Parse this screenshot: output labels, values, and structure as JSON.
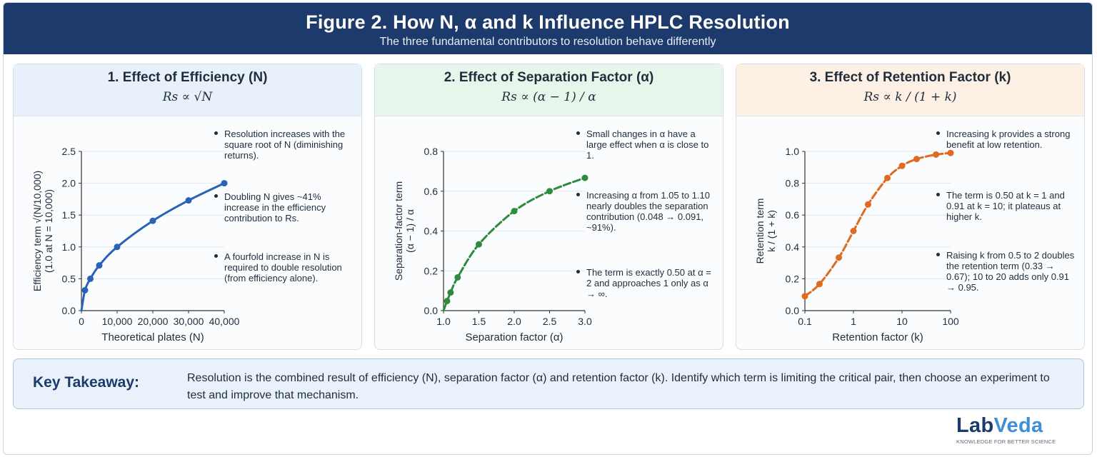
{
  "header": {
    "title": "Figure 2. How N, α and k Influence HPLC Resolution",
    "subtitle": "The three fundamental contributors to resolution behave differently"
  },
  "panels": [
    {
      "title": "1.  Effect of Efficiency (N)",
      "formula": "Rs ∝ √N",
      "bullets": [
        "Resolution increases with the square root of N (diminishing returns).",
        "Doubling N gives ~41% increase in the efficiency contribution to Rs.",
        "A fourfold increase in N is required to double resolution (from efficiency alone)."
      ]
    },
    {
      "title": "2.  Effect of Separation Factor (α)",
      "formula": "Rs ∝ (α − 1) / α",
      "bullets": [
        "Small changes in α have a large effect when α is close to 1.",
        "Increasing α from 1.05 to 1.10 nearly doubles the separation contribution (0.048 → 0.091, ~91%).",
        "The term is exactly 0.50 at α = 2 and approaches 1 only as α → ∞."
      ]
    },
    {
      "title": "3.  Effect of Retention Factor (k)",
      "formula": "Rs ∝ k / (1 + k)",
      "bullets": [
        "Increasing k provides a strong benefit at low retention.",
        "The term is 0.50 at k = 1 and 0.91 at k = 10; it plateaus at higher k.",
        "Raising k from 0.5 to 2 doubles the retention term (0.33 → 0.67); 10 to 20 adds only 0.91 → 0.95."
      ]
    }
  ],
  "takeaway": {
    "label": "Key Takeaway:",
    "text": "Resolution is the combined result of efficiency (N), separation factor (α) and retention factor (k). Identify which term is limiting the critical pair, then choose an experiment to test and improve that mechanism."
  },
  "logo": {
    "part1": "Lab",
    "part2": "Veda",
    "tagline": "KNOWLEDGE FOR BETTER SCIENCE"
  },
  "chart_data": [
    {
      "type": "line",
      "xlabel": "Theoretical plates (N)",
      "ylabel": [
        "Efficiency term √(N/10,000)",
        "(1.0 at N = 10,000)"
      ],
      "xlim": [
        0,
        40000
      ],
      "ylim": [
        0,
        2.5
      ],
      "x_ticks": [
        0,
        10000,
        20000,
        30000,
        40000
      ],
      "x_tick_labels": [
        "0",
        "10,000",
        "20,000",
        "30,000",
        "40,000"
      ],
      "y_ticks": [
        0,
        0.5,
        1.0,
        1.5,
        2.0,
        2.5
      ],
      "y_tick_labels": [
        "0.0",
        "0.5",
        "1.0",
        "1.5",
        "2.0",
        "2.5"
      ],
      "x": [
        1000,
        2500,
        5000,
        10000,
        20000,
        30000,
        40000
      ],
      "y": [
        0.32,
        0.5,
        0.71,
        1.0,
        1.41,
        1.73,
        2.0
      ],
      "color": "#2a62b8"
    },
    {
      "type": "line",
      "xlabel": "Separation factor (α)",
      "ylabel": [
        "Separation-factor term",
        "(α − 1) / α"
      ],
      "xlim": [
        1.0,
        3.0
      ],
      "ylim": [
        0,
        0.8
      ],
      "x_ticks": [
        1.0,
        1.5,
        2.0,
        2.5,
        3.0
      ],
      "x_tick_labels": [
        "1.0",
        "1.5",
        "2.0",
        "2.5",
        "3.0"
      ],
      "y_ticks": [
        0,
        0.2,
        0.4,
        0.6,
        0.8
      ],
      "y_tick_labels": [
        "0.0",
        "0.2",
        "0.4",
        "0.6",
        "0.8"
      ],
      "x": [
        1.05,
        1.1,
        1.2,
        1.5,
        2.0,
        2.5,
        3.0
      ],
      "y": [
        0.048,
        0.091,
        0.167,
        0.333,
        0.5,
        0.6,
        0.667
      ],
      "color": "#2e8b3e"
    },
    {
      "type": "line",
      "log_x": true,
      "xlabel": "Retention factor (k)",
      "ylabel": [
        "Retention term",
        "k / (1 + k)"
      ],
      "xlim": [
        0.1,
        100
      ],
      "ylim": [
        0,
        1.0
      ],
      "x_ticks": [
        0.1,
        1,
        10,
        100
      ],
      "x_tick_labels": [
        "0.1",
        "1",
        "10",
        "100"
      ],
      "y_ticks": [
        0,
        0.2,
        0.4,
        0.6,
        0.8,
        1.0
      ],
      "y_tick_labels": [
        "0.0",
        "0.2",
        "0.4",
        "0.6",
        "0.8",
        "1.0"
      ],
      "x": [
        0.1,
        0.2,
        0.5,
        1,
        2,
        5,
        10,
        20,
        50,
        100
      ],
      "y": [
        0.091,
        0.167,
        0.333,
        0.5,
        0.667,
        0.833,
        0.909,
        0.952,
        0.98,
        0.99
      ],
      "color": "#e06a1f"
    }
  ]
}
